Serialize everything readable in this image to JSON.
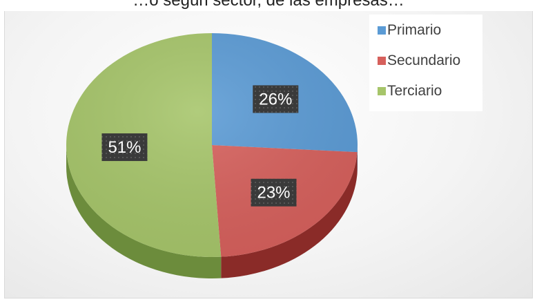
{
  "title": "…o según sector, de las empresas…",
  "chart_data": {
    "type": "pie",
    "title": "",
    "three_d": true,
    "start_angle_deg": 0,
    "direction": "clockwise",
    "legend_position": "top-right",
    "slices": [
      {
        "name": "Primario",
        "value": 26,
        "label": "26%",
        "color": "#5b9bd5",
        "side_color": "#3e6f9c"
      },
      {
        "name": "Secundario",
        "value": 23,
        "label": "23%",
        "color": "#d6605c",
        "side_color": "#8a2b28"
      },
      {
        "name": "Terciario",
        "value": 51,
        "label": "51%",
        "color": "#a6c56a",
        "side_color": "#6c8c3c"
      }
    ]
  },
  "legend": {
    "items": [
      {
        "name": "Primario",
        "color": "#5b9bd5"
      },
      {
        "name": "Secundario",
        "color": "#d6605c"
      },
      {
        "name": "Terciario",
        "color": "#a6c56a"
      }
    ]
  },
  "label_box_color": "#3a3a3a"
}
